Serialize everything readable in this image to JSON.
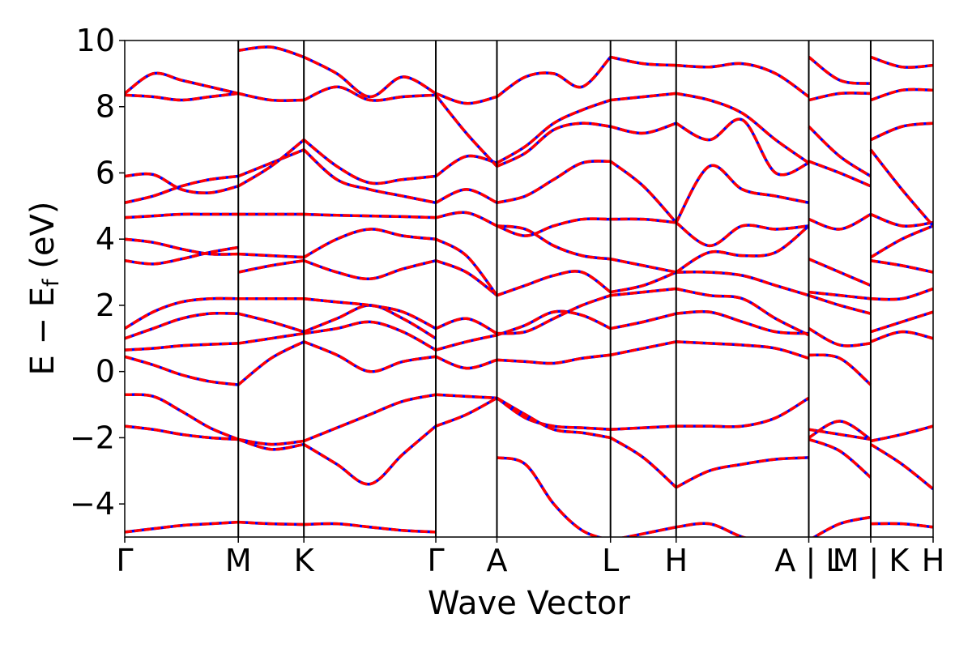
{
  "chart_data": {
    "type": "line",
    "title": "",
    "xlabel": "Wave Vector",
    "ylabel_main": "E − E",
    "ylabel_sub": "f",
    "ylabel_unit": " (eV)",
    "ylim": [
      -5,
      10
    ],
    "yticks": [
      -4,
      -2,
      0,
      2,
      4,
      6,
      8,
      10
    ],
    "ytick_labels": [
      "−4",
      "−2",
      "0",
      "2",
      "4",
      "6",
      "8",
      "10"
    ],
    "xlim": [
      0,
      1
    ],
    "kpath": [
      {
        "label": "Γ",
        "x": 0.0
      },
      {
        "label": "M",
        "x": 0.1405
      },
      {
        "label": "K",
        "x": 0.2216
      },
      {
        "label": "Γ",
        "x": 0.3848
      },
      {
        "label": "A",
        "x": 0.4604
      },
      {
        "label": "L",
        "x": 0.6009
      },
      {
        "label": "H",
        "x": 0.6821
      },
      {
        "label": "A | L",
        "x": 0.8462
      },
      {
        "label": "M | K",
        "x": 0.9228
      },
      {
        "label": "H",
        "x": 1.0
      }
    ],
    "legend": "none",
    "grid": false,
    "colors": {
      "series_a": "#0000ff",
      "series_b": "#ff0000",
      "vline": "#000000"
    },
    "series": [
      {
        "segment": "Γ-M",
        "x0": 0.0,
        "x1": 0.1405,
        "bands": [
          [
            -4.85,
            -4.75,
            -4.65,
            -4.6,
            -4.55
          ],
          [
            -1.65,
            -1.75,
            -1.9,
            -2.0,
            -2.05
          ],
          [
            -0.7,
            -0.75,
            -1.2,
            -1.7,
            -2.05
          ],
          [
            0.45,
            0.2,
            -0.1,
            -0.3,
            -0.4
          ],
          [
            0.65,
            0.7,
            0.78,
            0.82,
            0.85
          ],
          [
            1.0,
            1.3,
            1.6,
            1.75,
            1.75
          ],
          [
            1.3,
            1.8,
            2.1,
            2.2,
            2.2
          ],
          [
            3.35,
            3.25,
            3.4,
            3.6,
            3.75
          ],
          [
            4.0,
            3.9,
            3.7,
            3.55,
            3.55
          ],
          [
            4.65,
            4.7,
            4.75,
            4.75,
            4.75
          ],
          [
            5.1,
            5.3,
            5.6,
            5.8,
            5.9
          ],
          [
            5.9,
            5.95,
            5.5,
            5.4,
            5.6
          ],
          [
            8.35,
            8.3,
            8.2,
            8.3,
            8.4
          ],
          [
            8.4,
            9.0,
            8.8,
            8.6,
            8.4
          ]
        ]
      },
      {
        "segment": "M-K",
        "x0": 0.1405,
        "x1": 0.2216,
        "bands": [
          [
            -4.55,
            -4.6,
            -4.62
          ],
          [
            -2.05,
            -2.2,
            -2.1
          ],
          [
            -2.05,
            -2.35,
            -2.2
          ],
          [
            -0.4,
            0.4,
            0.9
          ],
          [
            0.85,
            1.0,
            1.15
          ],
          [
            1.75,
            1.5,
            1.2
          ],
          [
            2.2,
            2.2,
            2.2
          ],
          [
            3.0,
            3.2,
            3.35
          ],
          [
            3.55,
            3.5,
            3.45
          ],
          [
            4.75,
            4.75,
            4.75
          ],
          [
            5.9,
            6.3,
            6.7
          ],
          [
            5.6,
            6.2,
            7.0
          ],
          [
            8.4,
            8.2,
            8.2
          ],
          [
            9.7,
            9.8,
            9.5
          ]
        ]
      },
      {
        "segment": "K-Γ",
        "x0": 0.2216,
        "x1": 0.3848,
        "bands": [
          [
            -4.62,
            -4.6,
            -4.7,
            -4.8,
            -4.85
          ],
          [
            -2.1,
            -1.7,
            -1.3,
            -0.9,
            -0.7
          ],
          [
            -2.2,
            -2.8,
            -3.4,
            -2.5,
            -1.65
          ],
          [
            0.9,
            0.5,
            0.0,
            0.3,
            0.45
          ],
          [
            1.15,
            1.3,
            1.5,
            1.2,
            0.65
          ],
          [
            1.2,
            1.6,
            2.0,
            1.6,
            1.0
          ],
          [
            2.2,
            2.1,
            2.0,
            1.8,
            1.3
          ],
          [
            3.35,
            3.0,
            2.8,
            3.1,
            3.35
          ],
          [
            3.45,
            4.0,
            4.3,
            4.1,
            4.0
          ],
          [
            4.75,
            4.72,
            4.7,
            4.68,
            4.65
          ],
          [
            6.7,
            5.8,
            5.5,
            5.3,
            5.1
          ],
          [
            7.0,
            6.2,
            5.7,
            5.8,
            5.9
          ],
          [
            8.2,
            8.6,
            8.2,
            8.3,
            8.35
          ],
          [
            9.5,
            9.0,
            8.3,
            8.9,
            8.4
          ]
        ]
      },
      {
        "segment": "Γ-A",
        "x0": 0.3848,
        "x1": 0.4604,
        "bands": [
          [
            -0.7,
            -0.75,
            -0.8
          ],
          [
            -1.65,
            -1.3,
            -0.8
          ],
          [
            0.45,
            0.1,
            0.35
          ],
          [
            0.65,
            0.9,
            1.1
          ],
          [
            1.3,
            1.6,
            1.15
          ],
          [
            3.35,
            3.0,
            2.3
          ],
          [
            4.0,
            3.5,
            2.3
          ],
          [
            4.65,
            4.8,
            4.4
          ],
          [
            5.1,
            5.5,
            5.1
          ],
          [
            5.9,
            6.5,
            6.3
          ],
          [
            8.35,
            7.2,
            6.2
          ],
          [
            8.4,
            8.1,
            8.3
          ]
        ]
      },
      {
        "segment": "A-L",
        "x0": 0.4604,
        "x1": 0.6009,
        "bands": [
          [
            -0.8,
            -1.4,
            -1.65,
            -1.7,
            -1.75
          ],
          [
            -0.8,
            -1.3,
            -1.75,
            -1.85,
            -2.0
          ],
          [
            -2.6,
            -2.8,
            -4.0,
            -4.8,
            -5.1
          ],
          [
            0.35,
            0.3,
            0.25,
            0.4,
            0.5
          ],
          [
            1.1,
            1.4,
            1.8,
            1.7,
            1.3
          ],
          [
            1.15,
            1.2,
            1.6,
            2.0,
            2.3
          ],
          [
            2.3,
            2.6,
            2.9,
            3.0,
            2.4
          ],
          [
            4.4,
            4.3,
            3.8,
            3.5,
            3.4
          ],
          [
            4.4,
            4.1,
            4.4,
            4.6,
            4.6
          ],
          [
            5.1,
            5.3,
            5.8,
            6.3,
            6.35
          ],
          [
            6.2,
            6.6,
            7.3,
            7.5,
            7.4
          ],
          [
            6.3,
            6.8,
            7.5,
            7.9,
            8.2
          ],
          [
            8.3,
            8.9,
            9.0,
            8.6,
            9.5
          ]
        ]
      },
      {
        "segment": "L-H",
        "x0": 0.6009,
        "x1": 0.6821,
        "bands": [
          [
            -1.75,
            -1.7,
            -1.65
          ],
          [
            -2.0,
            -2.6,
            -3.5
          ],
          [
            -5.1,
            -4.9,
            -4.7
          ],
          [
            0.5,
            0.7,
            0.9
          ],
          [
            1.3,
            1.5,
            1.75
          ],
          [
            2.3,
            2.4,
            2.5
          ],
          [
            2.4,
            2.6,
            3.0
          ],
          [
            3.4,
            3.2,
            3.0
          ],
          [
            4.6,
            4.6,
            4.5
          ],
          [
            6.35,
            5.6,
            4.5
          ],
          [
            7.4,
            7.2,
            7.5
          ],
          [
            8.2,
            8.3,
            8.4
          ],
          [
            9.5,
            9.3,
            9.25
          ]
        ]
      },
      {
        "segment": "H-A",
        "x0": 0.6821,
        "x1": 0.8462,
        "bands": [
          [
            -1.65,
            -1.65,
            -1.65,
            -1.4,
            -0.8
          ],
          [
            -3.5,
            -3.0,
            -2.8,
            -2.65,
            -2.6
          ],
          [
            -4.7,
            -4.6,
            -5.0,
            -5.2,
            -5.3
          ],
          [
            0.9,
            0.85,
            0.8,
            0.7,
            0.4
          ],
          [
            1.75,
            1.8,
            1.5,
            1.2,
            1.15
          ],
          [
            2.5,
            2.3,
            2.2,
            1.6,
            1.1
          ],
          [
            3.0,
            3.0,
            2.9,
            2.6,
            2.3
          ],
          [
            3.0,
            3.6,
            3.5,
            3.6,
            4.4
          ],
          [
            4.5,
            3.8,
            4.4,
            4.3,
            4.4
          ],
          [
            4.5,
            6.2,
            5.5,
            5.3,
            5.1
          ],
          [
            7.5,
            7.0,
            7.6,
            6.0,
            6.3
          ],
          [
            8.4,
            8.2,
            7.8,
            7.0,
            6.3
          ],
          [
            9.25,
            9.2,
            9.3,
            9.0,
            8.3
          ]
        ]
      },
      {
        "segment": "L-M",
        "x0": 0.8462,
        "x1": 0.9228,
        "bands": [
          [
            -1.75,
            -1.9,
            -2.05
          ],
          [
            -2.0,
            -1.5,
            -2.05
          ],
          [
            -2.05,
            -2.4,
            -3.2
          ],
          [
            -5.1,
            -4.6,
            -4.4
          ],
          [
            0.5,
            0.4,
            -0.4
          ],
          [
            1.3,
            0.8,
            0.85
          ],
          [
            2.3,
            2.0,
            1.75
          ],
          [
            2.4,
            2.3,
            2.2
          ],
          [
            3.4,
            3.0,
            2.6
          ],
          [
            4.6,
            4.3,
            4.75
          ],
          [
            6.35,
            6.0,
            5.6
          ],
          [
            7.4,
            6.5,
            5.9
          ],
          [
            8.2,
            8.4,
            8.4
          ],
          [
            9.5,
            8.8,
            8.7
          ]
        ]
      },
      {
        "segment": "K-H",
        "x0": 0.9228,
        "x1": 1.0,
        "bands": [
          [
            -2.1,
            -1.9,
            -1.65
          ],
          [
            -2.2,
            -2.8,
            -3.55
          ],
          [
            -4.6,
            -4.6,
            -4.7
          ],
          [
            0.9,
            1.2,
            1.0
          ],
          [
            1.2,
            1.5,
            1.8
          ],
          [
            2.2,
            2.2,
            2.5
          ],
          [
            3.35,
            3.2,
            3.0
          ],
          [
            3.45,
            4.0,
            4.4
          ],
          [
            4.75,
            4.4,
            4.5
          ],
          [
            6.7,
            5.5,
            4.4
          ],
          [
            7.0,
            7.4,
            7.5
          ],
          [
            8.2,
            8.5,
            8.5
          ],
          [
            9.5,
            9.2,
            9.25
          ]
        ]
      }
    ]
  }
}
